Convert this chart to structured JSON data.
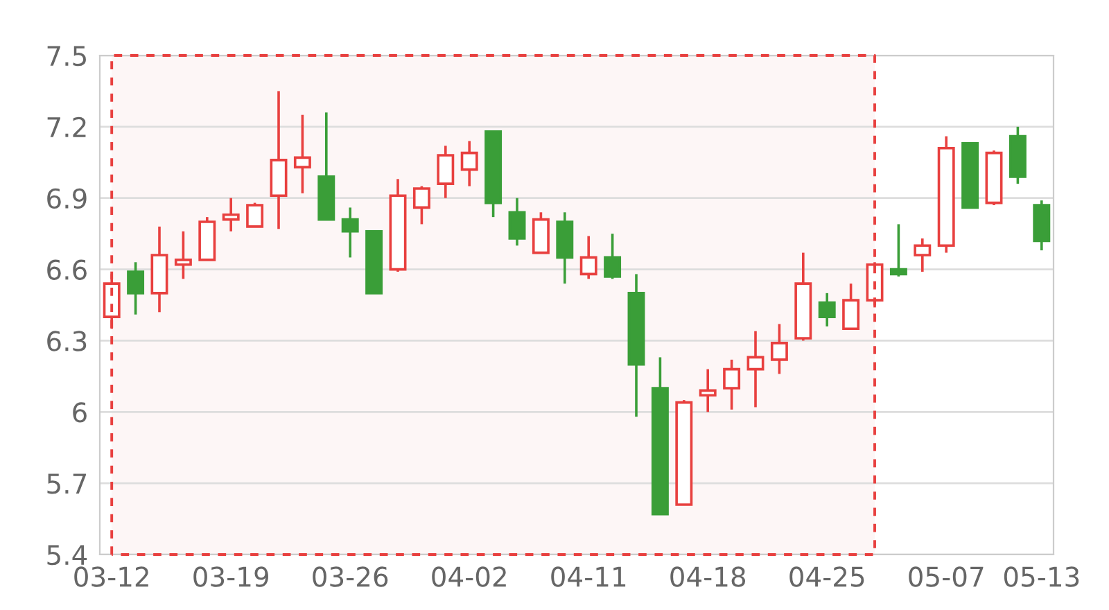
{
  "chart_data": {
    "type": "candlestick",
    "categories": [
      "03-12",
      null,
      null,
      null,
      null,
      "03-19",
      null,
      null,
      null,
      null,
      "03-26",
      null,
      null,
      null,
      null,
      "04-02",
      null,
      null,
      null,
      null,
      "04-11",
      null,
      null,
      null,
      null,
      "04-18",
      null,
      null,
      null,
      null,
      "04-25",
      null,
      null,
      null,
      null,
      "05-07",
      null,
      null,
      null,
      "05-13"
    ],
    "ohlc": [
      [
        6.4,
        6.58,
        6.35,
        6.54
      ],
      [
        6.59,
        6.63,
        6.41,
        6.5
      ],
      [
        6.5,
        6.78,
        6.42,
        6.66
      ],
      [
        6.62,
        6.76,
        6.56,
        6.64
      ],
      [
        6.64,
        6.82,
        6.64,
        6.8
      ],
      [
        6.81,
        6.9,
        6.76,
        6.83
      ],
      [
        6.78,
        6.88,
        6.78,
        6.87
      ],
      [
        6.91,
        7.35,
        6.77,
        7.06
      ],
      [
        7.03,
        7.25,
        6.92,
        7.07
      ],
      [
        6.99,
        7.26,
        6.81,
        6.81
      ],
      [
        6.81,
        6.86,
        6.65,
        6.76
      ],
      [
        6.76,
        6.76,
        6.5,
        6.5
      ],
      [
        6.6,
        6.98,
        6.59,
        6.91
      ],
      [
        6.86,
        6.95,
        6.79,
        6.94
      ],
      [
        6.96,
        7.12,
        6.9,
        7.08
      ],
      [
        7.02,
        7.14,
        6.95,
        7.09
      ],
      [
        7.18,
        7.18,
        6.82,
        6.88
      ],
      [
        6.84,
        6.9,
        6.7,
        6.73
      ],
      [
        6.67,
        6.84,
        6.67,
        6.81
      ],
      [
        6.8,
        6.84,
        6.54,
        6.65
      ],
      [
        6.58,
        6.74,
        6.56,
        6.65
      ],
      [
        6.65,
        6.75,
        6.56,
        6.57
      ],
      [
        6.5,
        6.58,
        5.98,
        6.2
      ],
      [
        6.1,
        6.23,
        5.57,
        5.57
      ],
      [
        5.61,
        6.05,
        5.61,
        6.04
      ],
      [
        6.07,
        6.18,
        6.0,
        6.09
      ],
      [
        6.1,
        6.22,
        6.01,
        6.18
      ],
      [
        6.18,
        6.34,
        6.02,
        6.23
      ],
      [
        6.22,
        6.37,
        6.16,
        6.29
      ],
      [
        6.31,
        6.67,
        6.3,
        6.54
      ],
      [
        6.46,
        6.5,
        6.36,
        6.4
      ],
      [
        6.35,
        6.54,
        6.35,
        6.47
      ],
      [
        6.47,
        6.63,
        6.44,
        6.62
      ],
      [
        6.6,
        6.79,
        6.57,
        6.58
      ],
      [
        6.66,
        6.73,
        6.59,
        6.7
      ],
      [
        6.7,
        7.16,
        6.67,
        7.11
      ],
      [
        7.13,
        7.13,
        6.86,
        6.86
      ],
      [
        6.88,
        7.1,
        6.87,
        7.09
      ],
      [
        7.16,
        7.2,
        6.96,
        6.99
      ],
      [
        6.87,
        6.89,
        6.68,
        6.72
      ]
    ],
    "colors": [
      "#e8403f",
      "#3a9e38",
      "#e8403f",
      "#e8403f",
      "#e8403f",
      "#e8403f",
      "#e8403f",
      "#e8403f",
      "#e8403f",
      "#3a9e38",
      "#3a9e38",
      "#3a9e38",
      "#e8403f",
      "#e8403f",
      "#e8403f",
      "#e8403f",
      "#3a9e38",
      "#3a9e38",
      "#e8403f",
      "#3a9e38",
      "#e8403f",
      "#3a9e38",
      "#3a9e38",
      "#3a9e38",
      "#e8403f",
      "#e8403f",
      "#e8403f",
      "#e8403f",
      "#e8403f",
      "#e8403f",
      "#3a9e38",
      "#e8403f",
      "#e8403f",
      "#3a9e38",
      "#e8403f",
      "#e8403f",
      "#3a9e38",
      "#e8403f",
      "#3a9e38",
      "#3a9e38"
    ],
    "ylim": [
      5.4,
      7.5
    ],
    "yticks": [
      5.4,
      5.7,
      6,
      6.3,
      6.6,
      6.9,
      7.2,
      7.5
    ],
    "grid": "y",
    "legend": false
  }
}
